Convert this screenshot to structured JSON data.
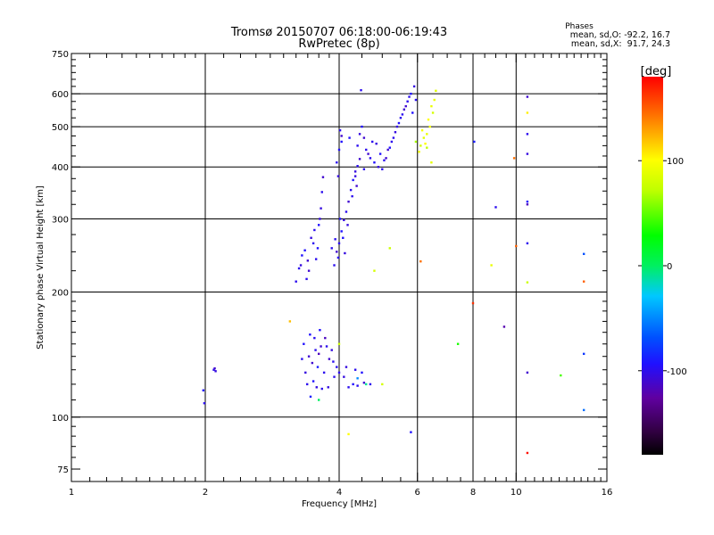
{
  "chart_data": {
    "type": "scatter",
    "title": "Tromsø 20150707 06:18:00-06:19:43",
    "subtitle": "RwPretec (8p)",
    "xlabel": "Frequency [MHz]",
    "ylabel": "Stationary phase Virtual Height [km]",
    "x_scale": "log",
    "y_scale": "log",
    "xlim": [
      1,
      16
    ],
    "ylim": [
      70,
      750
    ],
    "x_ticks": [
      1,
      2,
      4,
      6,
      8,
      10,
      16
    ],
    "x_tick_labels": [
      "1",
      "2",
      "4",
      "6",
      "8",
      "10",
      "16"
    ],
    "y_ticks": [
      75,
      100,
      200,
      300,
      400,
      500,
      600,
      750
    ],
    "y_tick_labels": [
      "75",
      "100",
      "200",
      "300",
      "400",
      "500",
      "600",
      "750"
    ],
    "x_gridlines": [
      2,
      4,
      6,
      8,
      10
    ],
    "y_gridlines": [
      100,
      200,
      300,
      400,
      500,
      600
    ],
    "grid": true,
    "stats": {
      "heading": "Phases",
      "lines": [
        "mean, sd,O: -92.2, 16.7",
        "mean, sd,X:  91.7, 24.3"
      ]
    },
    "colorbar": {
      "label": "[deg]",
      "range": [
        -180,
        180
      ],
      "ticks": [
        100,
        0,
        -100
      ],
      "tick_labels": [
        "100",
        "0",
        "-100"
      ]
    },
    "series": [
      {
        "points": [
          [
            3.39,
            120
          ],
          [
            3.48,
            135
          ],
          [
            3.56,
            118
          ],
          [
            3.33,
            150
          ],
          [
            3.6,
            142
          ],
          [
            3.7,
            128
          ],
          [
            3.52,
            155
          ],
          [
            3.45,
            112
          ],
          [
            3.8,
            138
          ],
          [
            3.9,
            125
          ],
          [
            3.62,
            162
          ],
          [
            3.36,
            128
          ],
          [
            3.75,
            148
          ],
          [
            3.42,
            140
          ],
          [
            3.58,
            132
          ],
          [
            3.66,
            117
          ],
          [
            3.85,
            145
          ],
          [
            3.5,
            122
          ],
          [
            3.3,
            138
          ],
          [
            3.72,
            155
          ],
          [
            3.95,
            132
          ],
          [
            4.0,
            128
          ],
          [
            4.1,
            125
          ],
          [
            4.2,
            118
          ],
          [
            4.3,
            120
          ],
          [
            4.4,
            119
          ],
          [
            4.55,
            121
          ],
          [
            4.7,
            120
          ],
          [
            4.15,
            132
          ],
          [
            4.35,
            130
          ],
          [
            4.5,
            128
          ],
          [
            3.64,
            148
          ],
          [
            3.54,
            145
          ],
          [
            3.78,
            118
          ],
          [
            3.44,
            158
          ],
          [
            3.88,
            136
          ],
          [
            3.2,
            212
          ],
          [
            3.28,
            232
          ],
          [
            3.35,
            252
          ],
          [
            3.42,
            225
          ],
          [
            3.5,
            262
          ],
          [
            3.55,
            240
          ],
          [
            3.6,
            290
          ],
          [
            3.64,
            318
          ],
          [
            3.66,
            348
          ],
          [
            3.68,
            378
          ],
          [
            3.3,
            245
          ],
          [
            3.38,
            215
          ],
          [
            3.46,
            270
          ],
          [
            3.52,
            282
          ],
          [
            3.4,
            238
          ],
          [
            3.25,
            228
          ],
          [
            3.58,
            255
          ],
          [
            3.62,
            300
          ],
          [
            3.9,
            232
          ],
          [
            3.95,
            250
          ],
          [
            4.0,
            262
          ],
          [
            4.05,
            280
          ],
          [
            4.1,
            298
          ],
          [
            4.15,
            312
          ],
          [
            4.2,
            330
          ],
          [
            4.25,
            352
          ],
          [
            4.3,
            372
          ],
          [
            4.35,
            390
          ],
          [
            4.4,
            402
          ],
          [
            4.45,
            418
          ],
          [
            3.98,
            242
          ],
          [
            4.08,
            270
          ],
          [
            4.18,
            290
          ],
          [
            4.28,
            340
          ],
          [
            4.38,
            360
          ],
          [
            3.92,
            268
          ],
          [
            4.02,
            300
          ],
          [
            4.12,
            248
          ],
          [
            3.85,
            255
          ],
          [
            3.95,
            410
          ],
          [
            4.0,
            440
          ],
          [
            4.05,
            475
          ],
          [
            4.02,
            490
          ],
          [
            3.98,
            380
          ],
          [
            4.05,
            460
          ],
          [
            4.4,
            450
          ],
          [
            4.45,
            480
          ],
          [
            4.5,
            500
          ],
          [
            4.55,
            470
          ],
          [
            4.6,
            440
          ],
          [
            4.7,
            420
          ],
          [
            4.8,
            410
          ],
          [
            4.9,
            400
          ],
          [
            5.0,
            395
          ],
          [
            5.1,
            420
          ],
          [
            5.2,
            445
          ],
          [
            5.3,
            470
          ],
          [
            5.4,
            500
          ],
          [
            5.5,
            525
          ],
          [
            5.6,
            550
          ],
          [
            5.7,
            575
          ],
          [
            5.8,
            600
          ],
          [
            5.9,
            625
          ],
          [
            5.75,
            590
          ],
          [
            5.65,
            560
          ],
          [
            5.55,
            535
          ],
          [
            5.45,
            510
          ],
          [
            5.35,
            485
          ],
          [
            5.25,
            460
          ],
          [
            5.15,
            440
          ],
          [
            5.05,
            415
          ],
          [
            4.95,
            430
          ],
          [
            4.85,
            455
          ],
          [
            4.75,
            460
          ],
          [
            4.65,
            430
          ],
          [
            5.95,
            580
          ],
          [
            5.85,
            540
          ],
          [
            4.55,
            395
          ],
          [
            4.35,
            380
          ],
          [
            4.48,
            612
          ],
          [
            4.22,
            470
          ],
          [
            2.09,
            130
          ],
          [
            2.1,
            131
          ],
          [
            2.11,
            129
          ],
          [
            1.98,
            116
          ],
          [
            1.99,
            108
          ],
          [
            6.15,
            490
          ],
          [
            6.2,
            470
          ],
          [
            6.25,
            455
          ],
          [
            6.3,
            480
          ],
          [
            6.4,
            500
          ],
          [
            6.5,
            540
          ],
          [
            6.55,
            580
          ],
          [
            6.6,
            610
          ],
          [
            6.35,
            520
          ],
          [
            6.45,
            560
          ],
          [
            6.1,
            450
          ],
          [
            6.05,
            435
          ],
          [
            6.3,
            445
          ],
          [
            10.6,
            590
          ],
          [
            10.6,
            480
          ],
          [
            10.6,
            430
          ],
          [
            10.6,
            330
          ],
          [
            10.6,
            325
          ],
          [
            10.6,
            262
          ],
          [
            9.0,
            320
          ],
          [
            14.2,
            247
          ],
          [
            14.2,
            142
          ],
          [
            14.2,
            104
          ],
          [
            9.4,
            165
          ],
          [
            10.6,
            128
          ],
          [
            8.05,
            460
          ],
          [
            5.8,
            92
          ],
          [
            4.4,
            124
          ],
          [
            4.6,
            120
          ],
          [
            4.0,
            150
          ],
          [
            5.2,
            255
          ],
          [
            4.8,
            225
          ],
          [
            6.1,
            237
          ],
          [
            8.0,
            188
          ],
          [
            7.4,
            150
          ],
          [
            10.6,
            540
          ],
          [
            10.6,
            211
          ],
          [
            12.6,
            126
          ],
          [
            8.8,
            232
          ],
          [
            14.2,
            212
          ],
          [
            10.0,
            258
          ],
          [
            9.9,
            420
          ],
          [
            10.6,
            82
          ],
          [
            5.0,
            120
          ],
          [
            4.2,
            91
          ],
          [
            3.1,
            170
          ],
          [
            3.6,
            110
          ],
          [
            5.95,
            460
          ],
          [
            6.45,
            410
          ]
        ],
        "phases": [
          -100,
          -110,
          -105,
          -95,
          -115,
          -100,
          -100,
          -90,
          -110,
          -100,
          -95,
          -105,
          -100,
          -110,
          -90,
          -100,
          -105,
          -95,
          -100,
          -115,
          -100,
          -100,
          -105,
          -100,
          -95,
          -100,
          -110,
          -100,
          -105,
          -100,
          -95,
          -110,
          -100,
          -105,
          -95,
          -100,
          -100,
          -105,
          -95,
          -110,
          -100,
          -100,
          -95,
          -105,
          -100,
          -110,
          -95,
          -100,
          -105,
          -100,
          -110,
          -100,
          -95,
          -105,
          -100,
          -110,
          -100,
          -95,
          -105,
          -100,
          -110,
          -100,
          -95,
          -105,
          -100,
          -110,
          -100,
          -95,
          -105,
          -100,
          -110,
          -100,
          -95,
          -105,
          -100,
          -100,
          -95,
          -110,
          -100,
          -105,
          -95,
          -100,
          -105,
          -95,
          -110,
          -100,
          -100,
          -95,
          -105,
          -100,
          -110,
          -95,
          -100,
          -105,
          -100,
          -110,
          -100,
          -95,
          -105,
          -100,
          -110,
          -100,
          -95,
          -105,
          -100,
          -110,
          -100,
          -95,
          -105,
          -100,
          -110,
          -100,
          -95,
          -100,
          -105,
          -100,
          -95,
          -100,
          -110,
          -105,
          -95,
          -100,
          95,
          85,
          100,
          90,
          95,
          80,
          90,
          85,
          100,
          90,
          80,
          95,
          70,
          -110,
          -100,
          -105,
          -95,
          -115,
          -100,
          -100,
          -70,
          -80,
          -60,
          -120,
          -110,
          -90,
          -95,
          -50,
          -10,
          75,
          75,
          80,
          145,
          165,
          35,
          105,
          75,
          45,
          90,
          150,
          150,
          145,
          175,
          80,
          100,
          120,
          0,
          65,
          88
        ]
      }
    ]
  }
}
